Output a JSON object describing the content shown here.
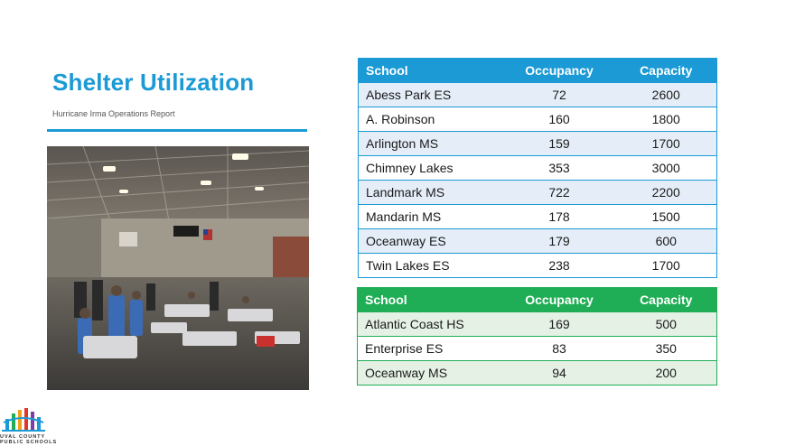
{
  "slide": {
    "title": "Shelter Utilization",
    "subtitle": "Hurricane Irma Operations Report",
    "photo": "shelter-gymnasium-photo"
  },
  "table_primary": {
    "headers": [
      "School",
      "Occupancy",
      "Capacity"
    ],
    "header_color": "#1b9ad6",
    "rows": [
      [
        "Abess Park ES",
        "72",
        "2600"
      ],
      [
        "A. Robinson",
        "160",
        "1800"
      ],
      [
        "Arlington MS",
        "159",
        "1700"
      ],
      [
        "Chimney Lakes",
        "353",
        "3000"
      ],
      [
        "Landmark MS",
        "722",
        "2200"
      ],
      [
        "Mandarin MS",
        "178",
        "1500"
      ],
      [
        "Oceanway ES",
        "179",
        "600"
      ],
      [
        "Twin Lakes ES",
        "238",
        "1700"
      ]
    ]
  },
  "table_secondary": {
    "headers": [
      "School",
      "Occupancy",
      "Capacity"
    ],
    "header_color": "#1fae55",
    "rows": [
      [
        "Atlantic Coast HS",
        "169",
        "500"
      ],
      [
        "Enterprise ES",
        "83",
        "350"
      ],
      [
        "Oceanway MS",
        "94",
        "200"
      ]
    ]
  },
  "logo": {
    "line1": "UVAL COUNTY",
    "line2": "PUBLIC SCHOOLS",
    "icon": "duval-schools-logo-icon"
  }
}
